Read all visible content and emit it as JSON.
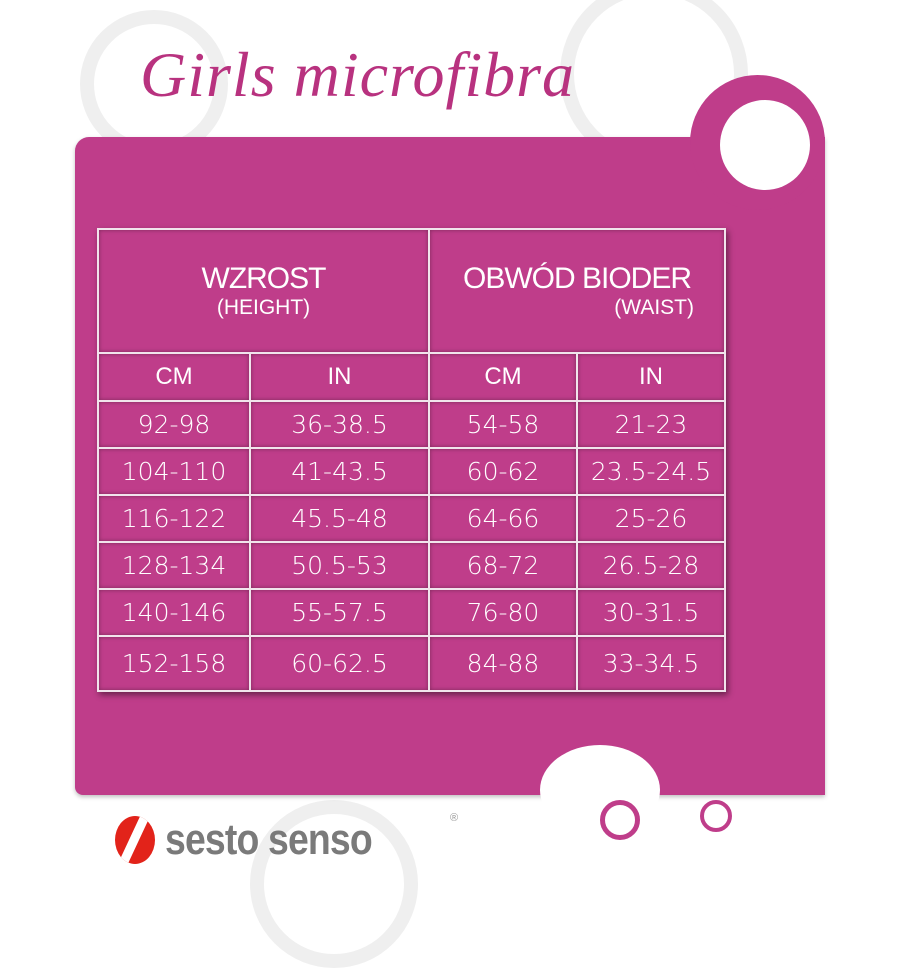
{
  "title": "Girls microfibra",
  "table": {
    "groups": [
      {
        "main": "WZROST",
        "sub": "(HEIGHT)"
      },
      {
        "main": "OBWÓD BIODER",
        "sub": "(WAIST)"
      }
    ],
    "columns": [
      "CM",
      "IN",
      "CM",
      "IN"
    ],
    "rows": [
      [
        "92-98",
        "36-38.5",
        "54-58",
        "21-23"
      ],
      [
        "104-110",
        "41-43.5",
        "60-62",
        "23.5-24.5"
      ],
      [
        "116-122",
        "45.5-48",
        "64-66",
        "25-26"
      ],
      [
        "128-134",
        "50.5-53",
        "68-72",
        "26.5-28"
      ],
      [
        "140-146",
        "55-57.5",
        "76-80",
        "30-31.5"
      ],
      [
        "152-158",
        "60-62.5",
        "84-88",
        "33-34.5"
      ]
    ]
  },
  "brand": {
    "name": "sesto senso",
    "registered": "®"
  },
  "colors": {
    "panel": "#bf3d8a",
    "title": "#b8327f",
    "logo_red": "#e2231a",
    "logo_gray": "#7a7a7a"
  }
}
